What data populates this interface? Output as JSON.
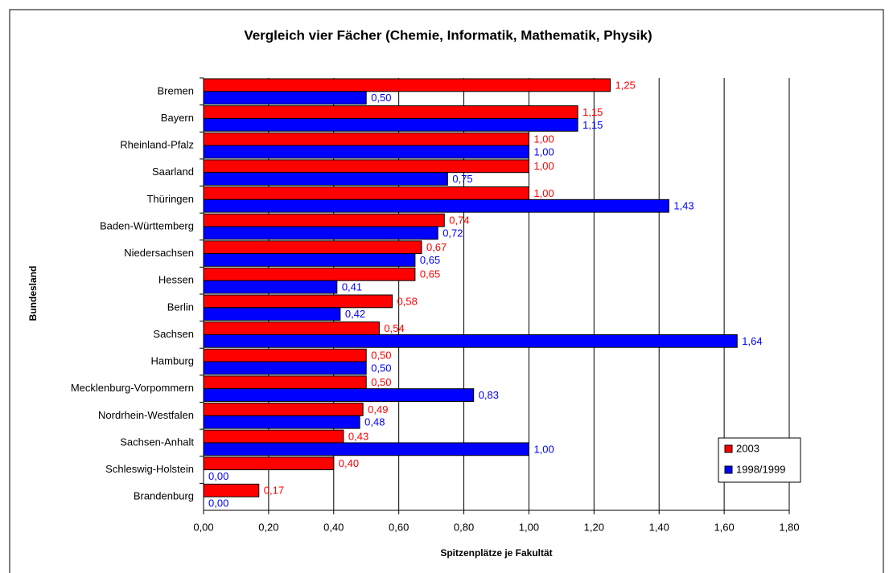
{
  "chart_data": {
    "type": "barh",
    "title": "Vergleich vier Fächer (Chemie, Informatik, Mathematik, Physik)",
    "xlabel": "Spitzenplätze je Fakultät",
    "ylabel": "Bundesland",
    "categories": [
      "Bremen",
      "Bayern",
      "Rheinland-Pfalz",
      "Saarland",
      "Thüringen",
      "Baden-Württemberg",
      "Niedersachsen",
      "Hessen",
      "Berlin",
      "Sachsen",
      "Hamburg",
      "Mecklenburg-Vorpommern",
      "Nordrhein-Westfalen",
      "Sachsen-Anhalt",
      "Schleswig-Holstein",
      "Brandenburg"
    ],
    "series": [
      {
        "name": "2003",
        "color": "#ff0000",
        "values": [
          1.25,
          1.15,
          1.0,
          1.0,
          1.0,
          0.74,
          0.67,
          0.65,
          0.58,
          0.54,
          0.5,
          0.5,
          0.49,
          0.43,
          0.4,
          0.17
        ],
        "value_labels": [
          "1,25",
          "1,15",
          "1,00",
          "1,00",
          "1,00",
          "0,74",
          "0,67",
          "0,65",
          "0,58",
          "0,54",
          "0,50",
          "0,50",
          "0,49",
          "0,43",
          "0,40",
          "0,17"
        ]
      },
      {
        "name": "1998/1999",
        "color": "#0000ff",
        "values": [
          0.5,
          1.15,
          1.0,
          0.75,
          1.43,
          0.72,
          0.65,
          0.41,
          0.42,
          1.64,
          0.5,
          0.83,
          0.48,
          1.0,
          0.0,
          0.0
        ],
        "value_labels": [
          "0,50",
          "1,15",
          "1,00",
          "0,75",
          "1,43",
          "0,72",
          "0,65",
          "0,41",
          "0,42",
          "1,64",
          "0,50",
          "0,83",
          "0,48",
          "1,00",
          "0,00",
          "0,00"
        ]
      }
    ],
    "xlim": [
      0,
      1.8
    ],
    "xticks": [
      {
        "value": 0,
        "label": "0,00"
      },
      {
        "value": 0.2,
        "label": "0,20"
      },
      {
        "value": 0.4,
        "label": "0,40"
      },
      {
        "value": 0.6,
        "label": "0,60"
      },
      {
        "value": 0.8,
        "label": "0,80"
      },
      {
        "value": 1.0,
        "label": "1,00"
      },
      {
        "value": 1.2,
        "label": "1,20"
      },
      {
        "value": 1.4,
        "label": "1,40"
      },
      {
        "value": 1.6,
        "label": "1,60"
      },
      {
        "value": 1.8,
        "label": "1,80"
      }
    ],
    "grid": true
  }
}
